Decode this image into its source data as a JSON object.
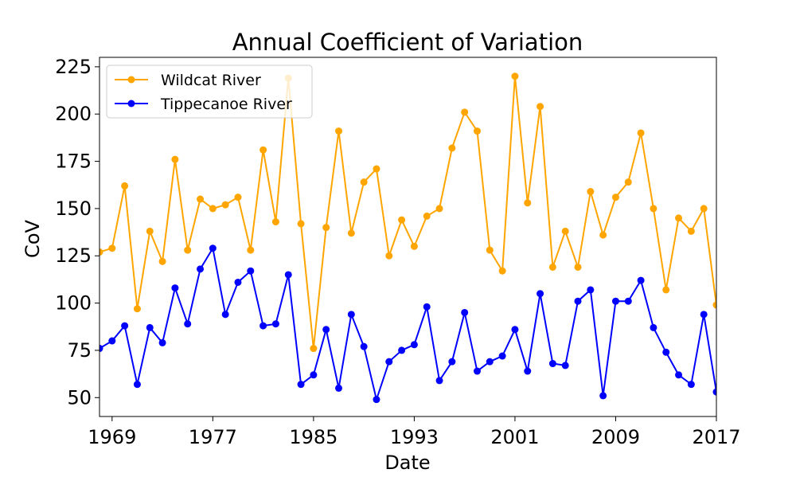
{
  "chart_data": {
    "type": "line",
    "title": "Annual Coefficient of Variation",
    "xlabel": "Date",
    "ylabel": "CoV",
    "x": [
      1968,
      1969,
      1970,
      1971,
      1972,
      1973,
      1974,
      1975,
      1976,
      1977,
      1978,
      1979,
      1980,
      1981,
      1982,
      1983,
      1984,
      1985,
      1986,
      1987,
      1988,
      1989,
      1990,
      1991,
      1992,
      1993,
      1994,
      1995,
      1996,
      1997,
      1998,
      1999,
      2000,
      2001,
      2002,
      2003,
      2004,
      2005,
      2006,
      2007,
      2008,
      2009,
      2010,
      2011,
      2012,
      2013,
      2014,
      2015,
      2016,
      2017
    ],
    "xlim": [
      1968,
      2017
    ],
    "xticks": [
      1969,
      1977,
      1985,
      1993,
      2001,
      2009,
      2017
    ],
    "ylim": [
      40,
      230
    ],
    "yticks": [
      50,
      75,
      100,
      125,
      150,
      175,
      200,
      225
    ],
    "grid": false,
    "legend_position": "top-left",
    "series": [
      {
        "name": "Wildcat River",
        "color": "#ffa500",
        "marker": "circle",
        "values": [
          127,
          129,
          162,
          97,
          138,
          122,
          176,
          128,
          155,
          150,
          152,
          156,
          128,
          181,
          143,
          219,
          142,
          76,
          140,
          191,
          137,
          164,
          171,
          125,
          144,
          130,
          146,
          150,
          182,
          201,
          191,
          128,
          117,
          220,
          153,
          204,
          119,
          138,
          119,
          159,
          136,
          156,
          164,
          190,
          150,
          107,
          145,
          138,
          150,
          99
        ]
      },
      {
        "name": "Tippecanoe River",
        "color": "#0000ff",
        "marker": "circle",
        "values": [
          76,
          80,
          88,
          57,
          87,
          79,
          108,
          89,
          118,
          129,
          94,
          111,
          117,
          88,
          89,
          115,
          57,
          62,
          86,
          55,
          94,
          77,
          49,
          69,
          75,
          78,
          98,
          59,
          69,
          95,
          64,
          69,
          72,
          86,
          64,
          105,
          68,
          67,
          101,
          107,
          51,
          101,
          101,
          112,
          87,
          74,
          62,
          57,
          94,
          53
        ]
      }
    ]
  }
}
